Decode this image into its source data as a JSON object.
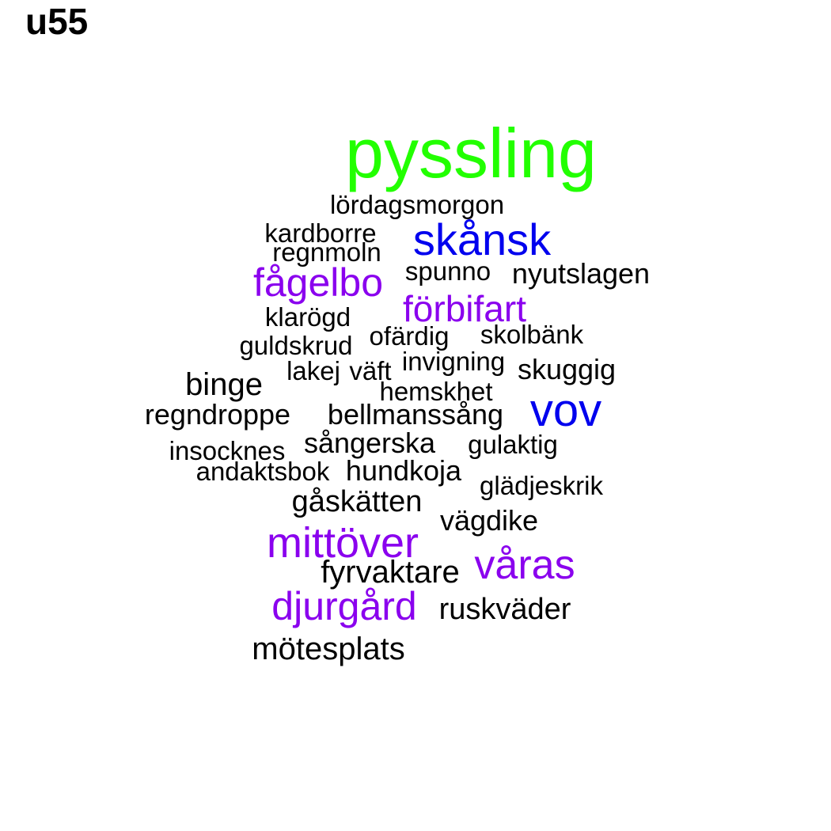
{
  "title": "u55",
  "colors": {
    "green": "#22ff00",
    "blue": "#0000ee",
    "purple": "#8a00ee",
    "black": "#000000"
  },
  "words": [
    {
      "text": "pyssling",
      "color": "green",
      "size": 5
    },
    {
      "text": "lördagsmorgon",
      "color": "black",
      "size": 1
    },
    {
      "text": "kardborre",
      "color": "black",
      "size": 1
    },
    {
      "text": "skånsk",
      "color": "blue",
      "size": 3
    },
    {
      "text": "regnmoln",
      "color": "black",
      "size": 1
    },
    {
      "text": "fågelbo",
      "color": "purple",
      "size": 3
    },
    {
      "text": "spunno",
      "color": "black",
      "size": 1
    },
    {
      "text": "nyutslagen",
      "color": "black",
      "size": 1
    },
    {
      "text": "förbifart",
      "color": "purple",
      "size": 2
    },
    {
      "text": "klarögd",
      "color": "black",
      "size": 1
    },
    {
      "text": "ofärdig",
      "color": "black",
      "size": 1
    },
    {
      "text": "skolbänk",
      "color": "black",
      "size": 1
    },
    {
      "text": "guldskrud",
      "color": "black",
      "size": 1
    },
    {
      "text": "invigning",
      "color": "black",
      "size": 1
    },
    {
      "text": "lakej",
      "color": "black",
      "size": 1
    },
    {
      "text": "väft",
      "color": "black",
      "size": 1
    },
    {
      "text": "skuggig",
      "color": "black",
      "size": 1
    },
    {
      "text": "binge",
      "color": "black",
      "size": 1
    },
    {
      "text": "hemskhet",
      "color": "black",
      "size": 1
    },
    {
      "text": "regndroppe",
      "color": "black",
      "size": 1
    },
    {
      "text": "bellmanssång",
      "color": "black",
      "size": 1
    },
    {
      "text": "vov",
      "color": "blue",
      "size": 3
    },
    {
      "text": "sångerska",
      "color": "black",
      "size": 1
    },
    {
      "text": "gulaktig",
      "color": "black",
      "size": 1
    },
    {
      "text": "insocknes",
      "color": "black",
      "size": 1
    },
    {
      "text": "andaktsbok",
      "color": "black",
      "size": 1
    },
    {
      "text": "hundkoja",
      "color": "black",
      "size": 1
    },
    {
      "text": "glädjeskrik",
      "color": "black",
      "size": 1
    },
    {
      "text": "gåskätten",
      "color": "black",
      "size": 1
    },
    {
      "text": "vägdike",
      "color": "black",
      "size": 1
    },
    {
      "text": "mittöver",
      "color": "purple",
      "size": 3
    },
    {
      "text": "våras",
      "color": "purple",
      "size": 3
    },
    {
      "text": "fyrvaktare",
      "color": "black",
      "size": 1
    },
    {
      "text": "djurgård",
      "color": "purple",
      "size": 3
    },
    {
      "text": "ruskväder",
      "color": "black",
      "size": 1
    },
    {
      "text": "mötesplats",
      "color": "black",
      "size": 1
    }
  ]
}
